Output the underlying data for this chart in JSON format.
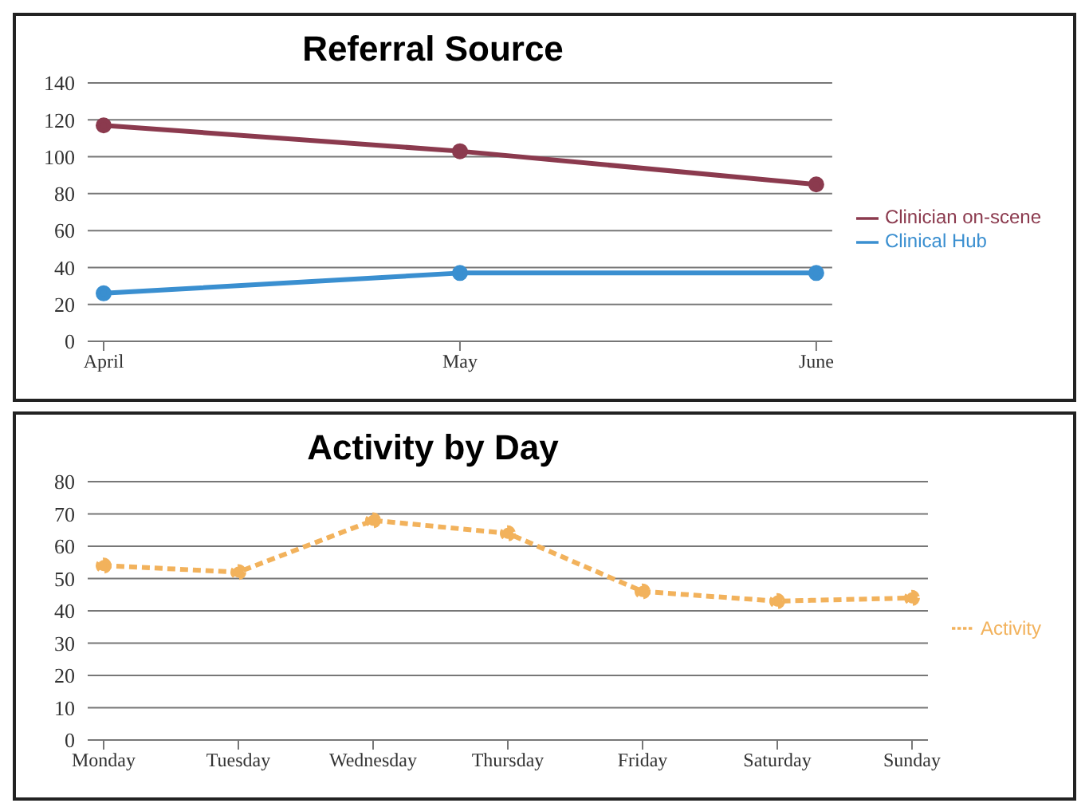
{
  "chart_data": [
    {
      "type": "line",
      "title": "Referral Source",
      "categories": [
        "April",
        "May",
        "June"
      ],
      "series": [
        {
          "name": "Clinician on-scene",
          "color": "#8b3a4e",
          "values": [
            117,
            103,
            85
          ]
        },
        {
          "name": "Clinical Hub",
          "color": "#3a8fd0",
          "values": [
            26,
            37,
            37
          ]
        }
      ],
      "ylim": [
        0,
        140
      ],
      "yticks": [
        0,
        20,
        40,
        60,
        80,
        100,
        120,
        140
      ],
      "grid": "y",
      "legend": "right",
      "marker": "circle",
      "line_style": "solid"
    },
    {
      "type": "line",
      "title": "Activity by Day",
      "categories": [
        "Monday",
        "Tuesday",
        "Wednesday",
        "Thursday",
        "Friday",
        "Saturday",
        "Sunday"
      ],
      "series": [
        {
          "name": "Activity",
          "color": "#f2b25c",
          "values": [
            54,
            52,
            68,
            64,
            46,
            43,
            44
          ]
        }
      ],
      "ylim": [
        0,
        80
      ],
      "yticks": [
        0,
        10,
        20,
        30,
        40,
        50,
        60,
        70,
        80
      ],
      "grid": "y",
      "legend": "right",
      "marker": "circle",
      "line_style": "dashed"
    }
  ]
}
